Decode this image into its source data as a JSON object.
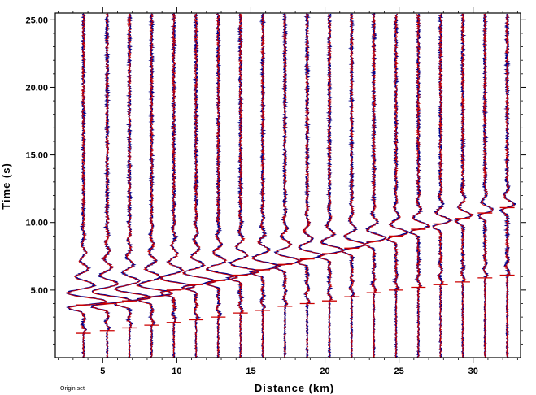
{
  "chart_data": {
    "type": "line",
    "title": "",
    "xlabel": "Distance (km)",
    "ylabel": "Time (s)",
    "xlim": [
      1.8,
      33.2
    ],
    "ylim": [
      0,
      25.5
    ],
    "xticks": [
      {
        "value": 5,
        "label": "5"
      },
      {
        "value": 10,
        "label": "10"
      },
      {
        "value": 15,
        "label": "15"
      },
      {
        "value": 20,
        "label": "20"
      },
      {
        "value": 25,
        "label": "25"
      },
      {
        "value": 30,
        "label": "30"
      }
    ],
    "yticks": [
      {
        "value": 5,
        "label": "5.00"
      },
      {
        "value": 10,
        "label": "10.00"
      },
      {
        "value": 15,
        "label": "15.00"
      },
      {
        "value": 20,
        "label": "20.00"
      },
      {
        "value": 25,
        "label": "25.00"
      }
    ],
    "series_colors": {
      "observed": "#00008b",
      "synthetic": "#cc0000"
    },
    "traces": [
      {
        "x": 3.7,
        "first_arrival": 1.8,
        "surface_arrival": 3.9
      },
      {
        "x": 5.3,
        "first_arrival": 2.0,
        "surface_arrival": 4.0
      },
      {
        "x": 6.8,
        "first_arrival": 2.2,
        "surface_arrival": 4.2
      },
      {
        "x": 8.3,
        "first_arrival": 2.4,
        "surface_arrival": 4.5
      },
      {
        "x": 9.8,
        "first_arrival": 2.6,
        "surface_arrival": 5.0
      },
      {
        "x": 11.3,
        "first_arrival": 2.8,
        "surface_arrival": 5.4
      },
      {
        "x": 12.8,
        "first_arrival": 3.0,
        "surface_arrival": 5.7
      },
      {
        "x": 14.3,
        "first_arrival": 3.3,
        "surface_arrival": 6.1
      },
      {
        "x": 15.8,
        "first_arrival": 3.5,
        "surface_arrival": 6.5
      },
      {
        "x": 17.3,
        "first_arrival": 3.8,
        "surface_arrival": 6.9
      },
      {
        "x": 18.8,
        "first_arrival": 4.0,
        "surface_arrival": 7.3
      },
      {
        "x": 20.3,
        "first_arrival": 4.2,
        "surface_arrival": 7.7
      },
      {
        "x": 21.8,
        "first_arrival": 4.5,
        "surface_arrival": 8.1
      },
      {
        "x": 23.3,
        "first_arrival": 4.8,
        "surface_arrival": 8.6
      },
      {
        "x": 24.8,
        "first_arrival": 5.0,
        "surface_arrival": 9.0
      },
      {
        "x": 26.3,
        "first_arrival": 5.2,
        "surface_arrival": 9.5
      },
      {
        "x": 27.8,
        "first_arrival": 5.4,
        "surface_arrival": 9.9
      },
      {
        "x": 29.3,
        "first_arrival": 5.6,
        "surface_arrival": 10.3
      },
      {
        "x": 30.8,
        "first_arrival": 5.9,
        "surface_arrival": 10.7
      },
      {
        "x": 32.3,
        "first_arrival": 6.1,
        "surface_arrival": 11.1
      }
    ]
  },
  "footnote": "Origin set"
}
